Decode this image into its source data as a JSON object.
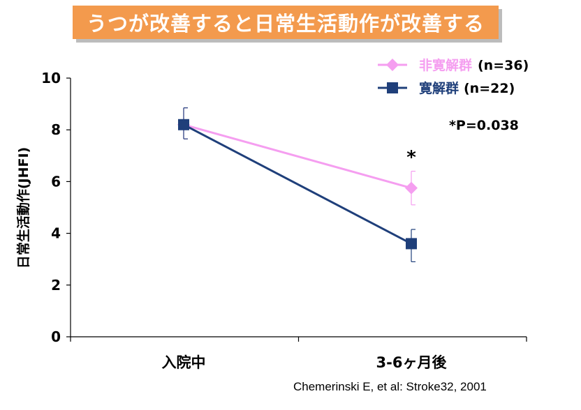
{
  "title": "うつが改善すると日常生活動作が改善する",
  "chart_data": {
    "type": "line",
    "ylabel": "日常生活動作(JHFI)",
    "ylim": [
      0,
      10
    ],
    "yticks": [
      "0",
      "2",
      "4",
      "6",
      "8",
      "10"
    ],
    "categories": [
      "入院中",
      "3-6ヶ月後"
    ],
    "series": [
      {
        "name": "非寛解群",
        "n_label": "(n=36)",
        "color": "#f59ef0",
        "marker": "diamond",
        "values": [
          8.2,
          5.75
        ],
        "err_low": [
          7.65,
          5.1
        ],
        "err_high": [
          8.85,
          6.4
        ]
      },
      {
        "name": "寛解群",
        "n_label": "(n=22)",
        "color": "#1f3f7a",
        "marker": "square",
        "values": [
          8.2,
          3.6
        ],
        "err_low": [
          7.65,
          2.9
        ],
        "err_high": [
          8.85,
          4.15
        ]
      }
    ],
    "significance_marker": "*",
    "pvalue": "*P=0.038"
  },
  "citation": "Chemerinski E, et al: Stroke32, 2001"
}
